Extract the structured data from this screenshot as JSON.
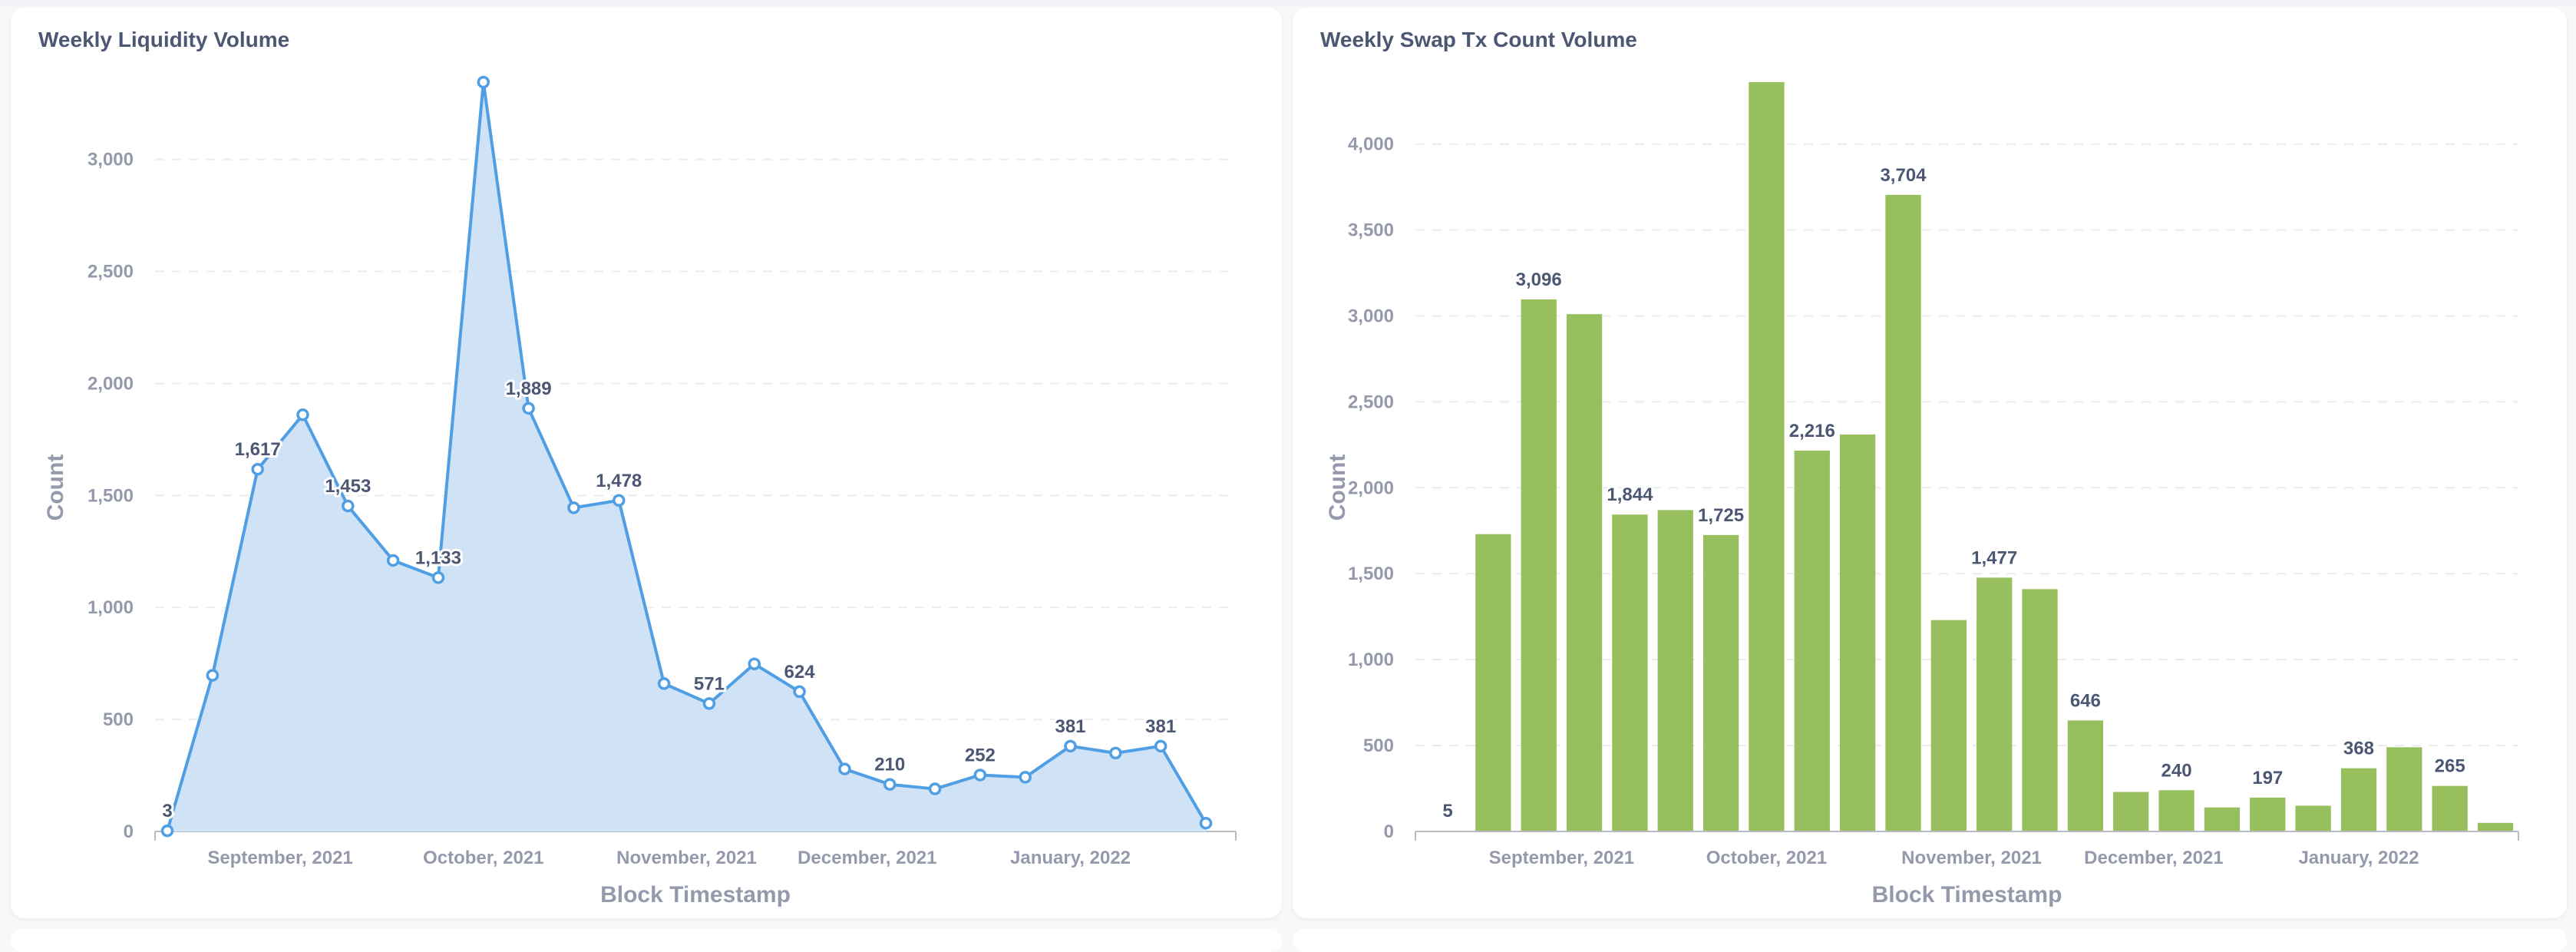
{
  "dashboard": {
    "cards": [
      {
        "title": "Weekly Liquidity Volume"
      },
      {
        "title": "Weekly Swap Tx Count Volume"
      }
    ]
  },
  "chart_data": [
    {
      "type": "area",
      "title": "Weekly Liquidity Volume",
      "xlabel": "Block Timestamp",
      "ylabel": "Count",
      "ylim": [
        0,
        3345
      ],
      "yticks": [
        0,
        500,
        1000,
        1500,
        2000,
        2500,
        3000
      ],
      "ytick_labels": [
        "0",
        "500",
        "1,000",
        "1,500",
        "2,000",
        "2,500",
        "3,000"
      ],
      "xtick_labels": [
        "September, 2021",
        "October, 2021",
        "November, 2021",
        "December, 2021",
        "January, 2022"
      ],
      "xtick_positions": [
        2.5,
        7,
        11.5,
        15.5,
        20
      ],
      "grid": true,
      "color": "#509ee3",
      "fill_color": "#cfe2f6",
      "values": [
        3,
        697,
        1617,
        1860,
        1453,
        1210,
        1133,
        3345,
        1889,
        1445,
        1478,
        660,
        571,
        748,
        624,
        279,
        210,
        190,
        252,
        242,
        381,
        350,
        381,
        37
      ],
      "labels": [
        "3",
        null,
        "1,617",
        null,
        "1,453",
        null,
        "1,133",
        null,
        "1,889",
        null,
        "1,478",
        null,
        "571",
        null,
        "624",
        null,
        "210",
        null,
        "252",
        null,
        "381",
        null,
        "381",
        null
      ]
    },
    {
      "type": "bar",
      "title": "Weekly Swap Tx Count Volume",
      "xlabel": "Block Timestamp",
      "ylabel": "Count",
      "ylim": [
        0,
        4360
      ],
      "yticks": [
        0,
        500,
        1000,
        1500,
        2000,
        2500,
        3000,
        3500,
        4000
      ],
      "ytick_labels": [
        "0",
        "500",
        "1,000",
        "1,500",
        "2,000",
        "2,500",
        "3,000",
        "3,500",
        "4,000"
      ],
      "xtick_labels": [
        "September, 2021",
        "October, 2021",
        "November, 2021",
        "December, 2021",
        "January, 2022"
      ],
      "xtick_positions": [
        2.5,
        7,
        11.5,
        15.5,
        20
      ],
      "grid": true,
      "color": "#98bf5e",
      "values": [
        5,
        1730,
        3096,
        3010,
        1844,
        1870,
        1725,
        4360,
        2216,
        2310,
        3704,
        1230,
        1477,
        1410,
        646,
        230,
        240,
        140,
        197,
        150,
        368,
        490,
        265,
        50
      ],
      "labels": [
        "5",
        null,
        "3,096",
        null,
        "1,844",
        null,
        "1,725",
        null,
        "2,216",
        null,
        "3,704",
        null,
        "1,477",
        null,
        "646",
        null,
        "240",
        null,
        "197",
        null,
        "368",
        null,
        "265",
        null
      ]
    }
  ]
}
